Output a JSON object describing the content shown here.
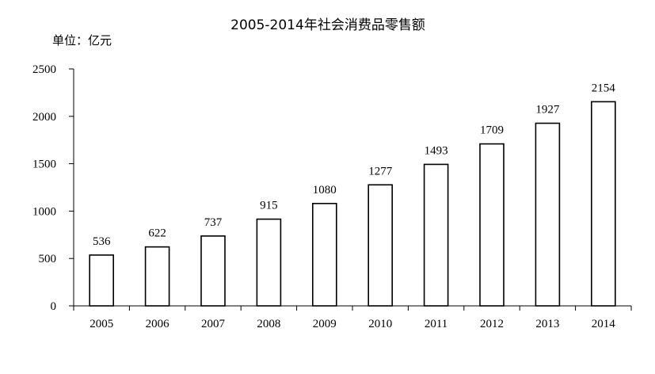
{
  "chart_data": {
    "type": "bar",
    "title": "2005-2014年社会消费品零售额",
    "unit_label": "单位：亿元",
    "categories": [
      "2005",
      "2006",
      "2007",
      "2008",
      "2009",
      "2010",
      "2011",
      "2012",
      "2013",
      "2014"
    ],
    "values": [
      536,
      622,
      737,
      915,
      1080,
      1277,
      1493,
      1709,
      1927,
      2154
    ],
    "data_labels": [
      "536",
      "622",
      "737",
      "915",
      "1080",
      "1277",
      "1493",
      "1709",
      "1927",
      "2154"
    ],
    "ylim": [
      0,
      2500
    ],
    "y_ticks": [
      0,
      500,
      1000,
      1500,
      2000,
      2500
    ],
    "y_tick_labels": [
      "0",
      "500",
      "1000",
      "1500",
      "2000",
      "2500"
    ],
    "xlabel": "",
    "ylabel": "",
    "grid": false,
    "legend": "none",
    "colors": {
      "bar_fill": "#ffffff",
      "bar_stroke": "#000000"
    }
  }
}
